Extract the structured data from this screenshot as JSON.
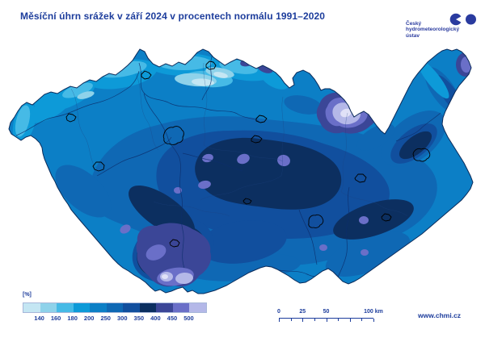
{
  "title": "Měsíční úhrn srážek v září 2024 v procentech normálu 1991–2020",
  "logo": {
    "name_line1": "Český",
    "name_line2": "hydrometeorologický",
    "name_line3": "ústav"
  },
  "legend": {
    "unit_label": "[%]",
    "tick_labels": [
      "140",
      "160",
      "180",
      "200",
      "250",
      "300",
      "350",
      "400",
      "450",
      "500"
    ],
    "colors": [
      "#c4e6f3",
      "#8ed2ea",
      "#46bae6",
      "#0d9ad8",
      "#0c7fc6",
      "#0f68b4",
      "#114f9e",
      "#0c2f60",
      "#3b4697",
      "#6a6fc8",
      "#b4b8e8"
    ]
  },
  "scale_bar": {
    "labels": [
      "0",
      "25",
      "50",
      "100 km"
    ],
    "positions": [
      0,
      0.25,
      0.5,
      1
    ]
  },
  "website": "www.chmi.cz",
  "map_colors": {
    "pale_purple_core": "#e0e1f7",
    "country_outline": "#0a2a5a",
    "region_border": "#1d4280",
    "river": "#0d2e6b",
    "city_outline": "#000000",
    "logo_navy": "#2a3b9f"
  },
  "colors": {
    "accent_text": "#1d3d9c"
  }
}
